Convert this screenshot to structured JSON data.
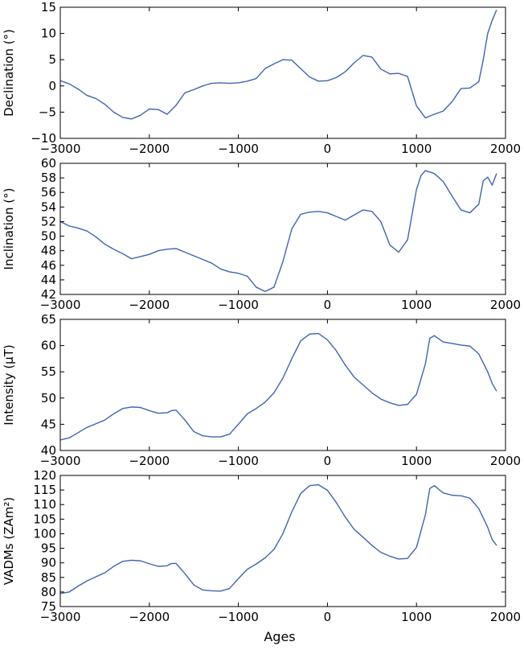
{
  "figure": {
    "shared_xlabel": "Ages"
  },
  "chart_data": [
    {
      "type": "line",
      "ylabel": "Declination (°)",
      "xlim": [
        -3000,
        2000
      ],
      "ylim": [
        -10,
        15
      ],
      "xticks": [
        -3000,
        -2000,
        -1000,
        0,
        1000,
        2000
      ],
      "xtick_labels": [
        "−3000",
        "−2000",
        "−1000",
        "0",
        "1000",
        "2000"
      ],
      "yticks": [
        -10,
        -5,
        0,
        5,
        10,
        15
      ],
      "ytick_labels": [
        "−10",
        "−5",
        "0",
        "5",
        "10",
        "15"
      ],
      "grid": false,
      "series": [
        {
          "color": "#4064b0",
          "x": [
            -3000,
            -2900,
            -2800,
            -2700,
            -2600,
            -2500,
            -2400,
            -2300,
            -2200,
            -2100,
            -2000,
            -1900,
            -1800,
            -1700,
            -1600,
            -1500,
            -1400,
            -1300,
            -1200,
            -1100,
            -1000,
            -900,
            -800,
            -700,
            -600,
            -500,
            -400,
            -300,
            -200,
            -100,
            0,
            100,
            200,
            300,
            400,
            500,
            600,
            700,
            800,
            900,
            1000,
            1100,
            1200,
            1300,
            1400,
            1500,
            1600,
            1700,
            1750,
            1800,
            1850,
            1900
          ],
          "y": [
            1.0,
            0.4,
            -0.6,
            -1.8,
            -2.4,
            -3.5,
            -5.0,
            -6.0,
            -6.3,
            -5.6,
            -4.4,
            -4.5,
            -5.4,
            -3.7,
            -1.3,
            -0.7,
            0.0,
            0.5,
            0.6,
            0.5,
            0.6,
            0.9,
            1.4,
            3.3,
            4.2,
            5.0,
            4.9,
            3.3,
            1.7,
            0.9,
            1.0,
            1.6,
            2.7,
            4.4,
            5.8,
            5.5,
            3.2,
            2.3,
            2.4,
            1.8,
            -3.8,
            -6.1,
            -5.4,
            -4.8,
            -3.0,
            -0.5,
            -0.4,
            0.8,
            5.0,
            10.0,
            12.5,
            14.5
          ]
        }
      ]
    },
    {
      "type": "line",
      "ylabel": "Inclination (°)",
      "xlim": [
        -3000,
        2000
      ],
      "ylim": [
        42,
        60
      ],
      "xticks": [
        -3000,
        -2000,
        -1000,
        0,
        1000,
        2000
      ],
      "xtick_labels": [
        "−3000",
        "−2000",
        "−1000",
        "0",
        "1000",
        "2000"
      ],
      "yticks": [
        42,
        44,
        46,
        48,
        50,
        52,
        54,
        56,
        58,
        60
      ],
      "ytick_labels": [
        "42",
        "44",
        "46",
        "48",
        "50",
        "52",
        "54",
        "56",
        "58",
        "60"
      ],
      "grid": false,
      "series": [
        {
          "color": "#4064b0",
          "x": [
            -3000,
            -2900,
            -2800,
            -2700,
            -2600,
            -2500,
            -2400,
            -2300,
            -2200,
            -2100,
            -2000,
            -1900,
            -1800,
            -1700,
            -1600,
            -1500,
            -1400,
            -1300,
            -1200,
            -1100,
            -1000,
            -900,
            -800,
            -700,
            -600,
            -500,
            -400,
            -300,
            -200,
            -100,
            0,
            100,
            200,
            300,
            400,
            500,
            600,
            700,
            800,
            900,
            1000,
            1050,
            1100,
            1200,
            1300,
            1400,
            1500,
            1600,
            1700,
            1750,
            1800,
            1850,
            1900
          ],
          "y": [
            52.0,
            51.4,
            51.1,
            50.7,
            49.9,
            48.9,
            48.2,
            47.6,
            46.9,
            47.2,
            47.5,
            48.0,
            48.2,
            48.3,
            47.8,
            47.3,
            46.8,
            46.3,
            45.5,
            45.1,
            44.9,
            44.5,
            43.0,
            42.4,
            43.0,
            46.5,
            51.0,
            53.0,
            53.3,
            53.4,
            53.2,
            52.7,
            52.2,
            52.9,
            53.6,
            53.4,
            52.0,
            48.8,
            47.8,
            49.5,
            56.4,
            58.3,
            59.0,
            58.6,
            57.5,
            55.5,
            53.6,
            53.2,
            54.4,
            57.6,
            58.1,
            57.0,
            58.6
          ]
        }
      ]
    },
    {
      "type": "line",
      "ylabel": "Intensity (μT)",
      "xlim": [
        -3000,
        2000
      ],
      "ylim": [
        40,
        65
      ],
      "xticks": [
        -3000,
        -2000,
        -1000,
        0,
        1000,
        2000
      ],
      "xtick_labels": [
        "−3000",
        "−2000",
        "−1000",
        "0",
        "1000",
        "2000"
      ],
      "yticks": [
        40,
        45,
        50,
        55,
        60,
        65
      ],
      "ytick_labels": [
        "40",
        "45",
        "50",
        "55",
        "60",
        "65"
      ],
      "grid": false,
      "series": [
        {
          "color": "#4064b0",
          "x": [
            -3000,
            -2900,
            -2800,
            -2700,
            -2600,
            -2500,
            -2400,
            -2300,
            -2200,
            -2100,
            -2000,
            -1900,
            -1800,
            -1750,
            -1700,
            -1600,
            -1500,
            -1400,
            -1300,
            -1200,
            -1100,
            -1000,
            -900,
            -800,
            -700,
            -600,
            -500,
            -400,
            -300,
            -200,
            -100,
            0,
            100,
            200,
            300,
            400,
            500,
            600,
            700,
            800,
            900,
            1000,
            1100,
            1150,
            1200,
            1300,
            1400,
            1500,
            1600,
            1700,
            1800,
            1850,
            1900
          ],
          "y": [
            42.0,
            42.4,
            43.4,
            44.4,
            45.1,
            45.8,
            47.0,
            48.0,
            48.3,
            48.2,
            47.6,
            47.1,
            47.2,
            47.6,
            47.7,
            45.8,
            43.6,
            42.8,
            42.6,
            42.6,
            43.1,
            45.0,
            47.0,
            48.0,
            49.2,
            51.0,
            53.8,
            57.5,
            60.9,
            62.2,
            62.3,
            61.1,
            59.0,
            56.3,
            54.0,
            52.5,
            51.0,
            49.8,
            49.1,
            48.6,
            48.8,
            50.7,
            56.5,
            61.4,
            61.9,
            60.7,
            60.4,
            60.1,
            59.9,
            58.4,
            55.0,
            52.8,
            51.3
          ]
        }
      ]
    },
    {
      "type": "line",
      "ylabel": "VADMs (ZAm²)",
      "xlabel": "Ages",
      "xlim": [
        -3000,
        2000
      ],
      "ylim": [
        75,
        120
      ],
      "xticks": [
        -3000,
        -2000,
        -1000,
        0,
        1000,
        2000
      ],
      "xtick_labels": [
        "−3000",
        "−2000",
        "−1000",
        "0",
        "1000",
        "2000"
      ],
      "yticks": [
        75,
        80,
        85,
        90,
        95,
        100,
        105,
        110,
        115,
        120
      ],
      "ytick_labels": [
        "75",
        "80",
        "85",
        "90",
        "95",
        "100",
        "105",
        "110",
        "115",
        "120"
      ],
      "grid": false,
      "series": [
        {
          "color": "#4064b0",
          "x": [
            -3000,
            -2900,
            -2800,
            -2700,
            -2600,
            -2500,
            -2400,
            -2300,
            -2200,
            -2100,
            -2000,
            -1900,
            -1800,
            -1750,
            -1700,
            -1600,
            -1500,
            -1400,
            -1300,
            -1200,
            -1100,
            -1000,
            -900,
            -800,
            -700,
            -600,
            -500,
            -400,
            -300,
            -200,
            -100,
            0,
            100,
            200,
            300,
            400,
            500,
            600,
            700,
            800,
            900,
            1000,
            1100,
            1150,
            1200,
            1300,
            1400,
            1500,
            1600,
            1700,
            1800,
            1850,
            1900
          ],
          "y": [
            79.5,
            80.0,
            82.0,
            83.8,
            85.2,
            86.6,
            88.8,
            90.5,
            90.9,
            90.7,
            89.7,
            88.8,
            89.0,
            89.8,
            89.8,
            86.3,
            82.4,
            80.7,
            80.4,
            80.3,
            81.2,
            84.6,
            87.8,
            89.6,
            91.7,
            94.6,
            100.0,
            107.5,
            113.8,
            116.5,
            116.8,
            114.9,
            110.7,
            105.7,
            101.5,
            98.8,
            96.0,
            93.6,
            92.3,
            91.3,
            91.5,
            95.3,
            106.5,
            115.5,
            116.5,
            114.0,
            113.2,
            113.0,
            112.2,
            108.6,
            102.2,
            98.0,
            96.0
          ]
        }
      ]
    }
  ]
}
